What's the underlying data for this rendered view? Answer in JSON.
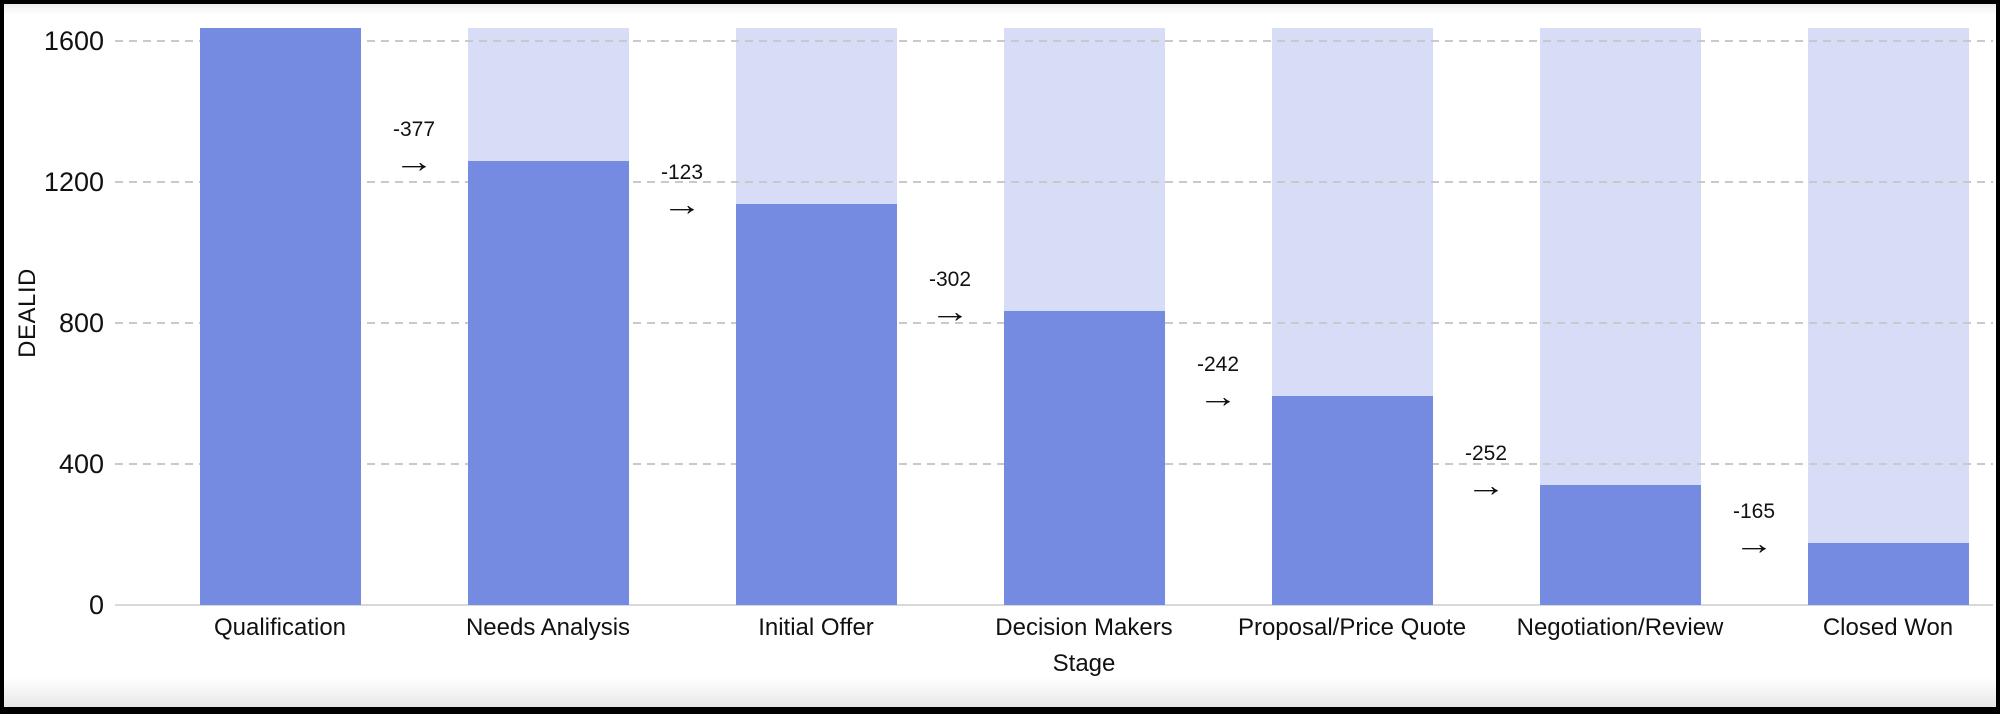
{
  "chart_data": {
    "type": "bar",
    "subtype": "funnel-stages-with-background-bars-and-drop-annotations",
    "title": "",
    "xlabel": "Stage",
    "ylabel": "DEALID",
    "categories": [
      "Qualification",
      "Needs Analysis",
      "Initial Offer",
      "Decision Makers",
      "Proposal/Price Quote",
      "Negotiation/Review",
      "Closed Won"
    ],
    "values": [
      1637,
      1260,
      1137,
      835,
      593,
      341,
      176
    ],
    "background_bar_value": 1637,
    "deltas": [
      -377,
      -123,
      -302,
      -242,
      -252,
      -165
    ],
    "delta_arrow_glyph": "→",
    "yticks": [
      0,
      400,
      800,
      1200,
      1600
    ],
    "ylim": [
      0,
      1637
    ],
    "grid": "horizontal-dashed",
    "legend": "none",
    "colors": {
      "bar": "#758BE2",
      "bar_background": "#D7DDF6",
      "gridline": "#C9C9C9",
      "axis_line": "#D9D9D9",
      "text": "#111111",
      "plot_background": "#FFFFFF",
      "frame_border": "#000000"
    }
  }
}
